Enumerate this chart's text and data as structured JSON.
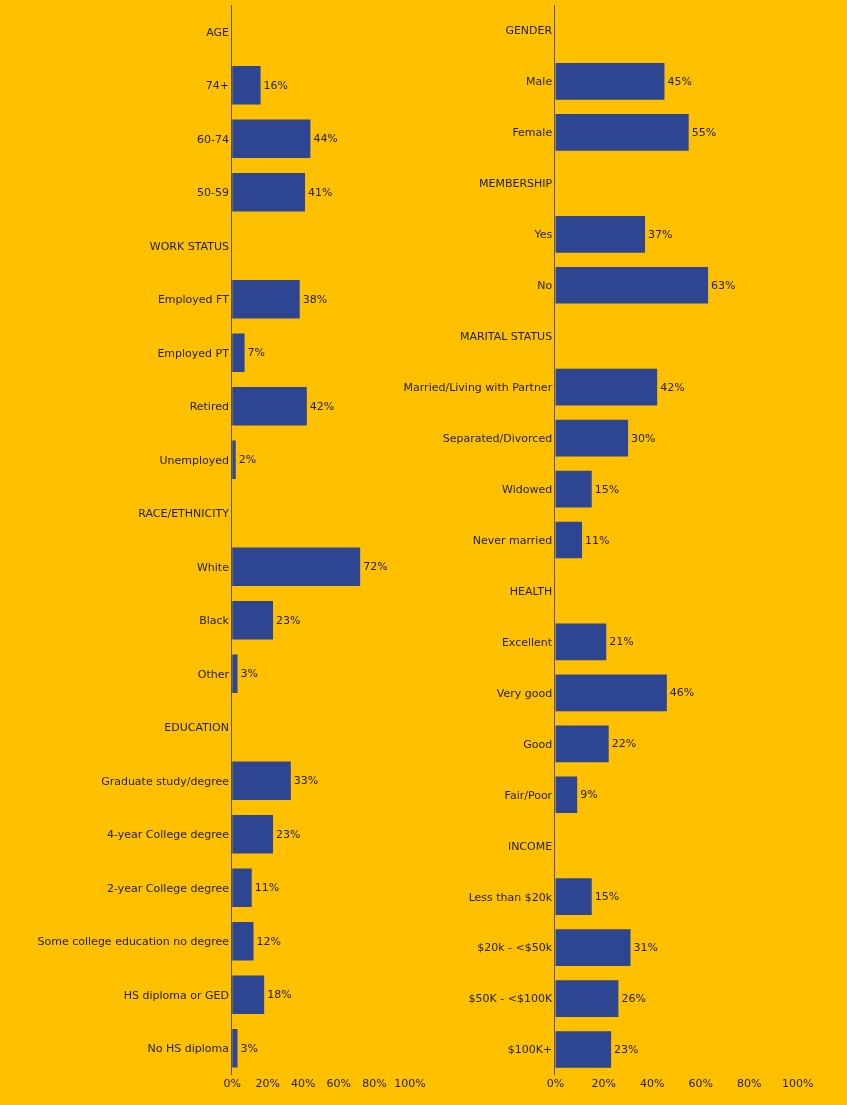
{
  "chart_data": [
    {
      "type": "bar",
      "orientation": "horizontal",
      "color": "#2e4591",
      "grid": false,
      "categories": [
        "AGE",
        "74+",
        "60-74",
        "50-59",
        "WORK STATUS",
        "Employed FT",
        "Employed PT",
        "Retired",
        "Unemployed",
        "RACE/ETHNICITY",
        "White",
        "Black",
        "Other",
        "EDUCATION",
        "Graduate study/degree",
        "4-year College degree",
        "2-year College degree",
        "Some college education no degree",
        "HS diploma or GED",
        "No HS diploma"
      ],
      "values": [
        null,
        16,
        44,
        41,
        null,
        38,
        7,
        42,
        2,
        null,
        72,
        23,
        3,
        null,
        33,
        23,
        11,
        12,
        18,
        3
      ],
      "value_labels": [
        null,
        "16%",
        "44%",
        "41%",
        null,
        "38%",
        "7%",
        "42%",
        "2%",
        null,
        "72%",
        "23%",
        "3%",
        null,
        "33%",
        "23%",
        "11%",
        "12%",
        "18%",
        "3%"
      ],
      "xlim": [
        0,
        100
      ],
      "xticks": [
        {
          "value": 0,
          "label": "0%"
        },
        {
          "value": 20,
          "label": "20%"
        },
        {
          "value": 40,
          "label": "40%"
        },
        {
          "value": 60,
          "label": "60%"
        },
        {
          "value": 80,
          "label": "80%"
        },
        {
          "value": 100,
          "label": "100%"
        }
      ]
    },
    {
      "type": "bar",
      "orientation": "horizontal",
      "color": "#2e4591",
      "grid": false,
      "categories": [
        "GENDER",
        "Male",
        "Female",
        "MEMBERSHIP",
        "Yes",
        "No",
        "MARITAL STATUS",
        "Married/Living with Partner",
        "Separated/Divorced",
        "Widowed",
        "Never married",
        "HEALTH",
        "Excellent",
        "Very good",
        "Good",
        "Fair/Poor",
        "INCOME",
        "Less than $20k",
        "$20k - <$50k",
        "$50K - <$100K",
        "$100K+"
      ],
      "values": [
        null,
        45,
        55,
        null,
        37,
        63,
        null,
        42,
        30,
        15,
        11,
        null,
        21,
        46,
        22,
        9,
        null,
        15,
        31,
        26,
        23
      ],
      "value_labels": [
        null,
        "45%",
        "55%",
        null,
        "37%",
        "63%",
        null,
        "42%",
        "30%",
        "15%",
        "11%",
        null,
        "21%",
        "46%",
        "22%",
        "9%",
        null,
        "15%",
        "31%",
        "26%",
        "23%"
      ],
      "xlim": [
        0,
        100
      ],
      "xticks": [
        {
          "value": 0,
          "label": "0%"
        },
        {
          "value": 20,
          "label": "20%"
        },
        {
          "value": 40,
          "label": "40%"
        },
        {
          "value": 60,
          "label": "60%"
        },
        {
          "value": 80,
          "label": "80%"
        },
        {
          "value": 100,
          "label": "100%"
        }
      ]
    }
  ]
}
